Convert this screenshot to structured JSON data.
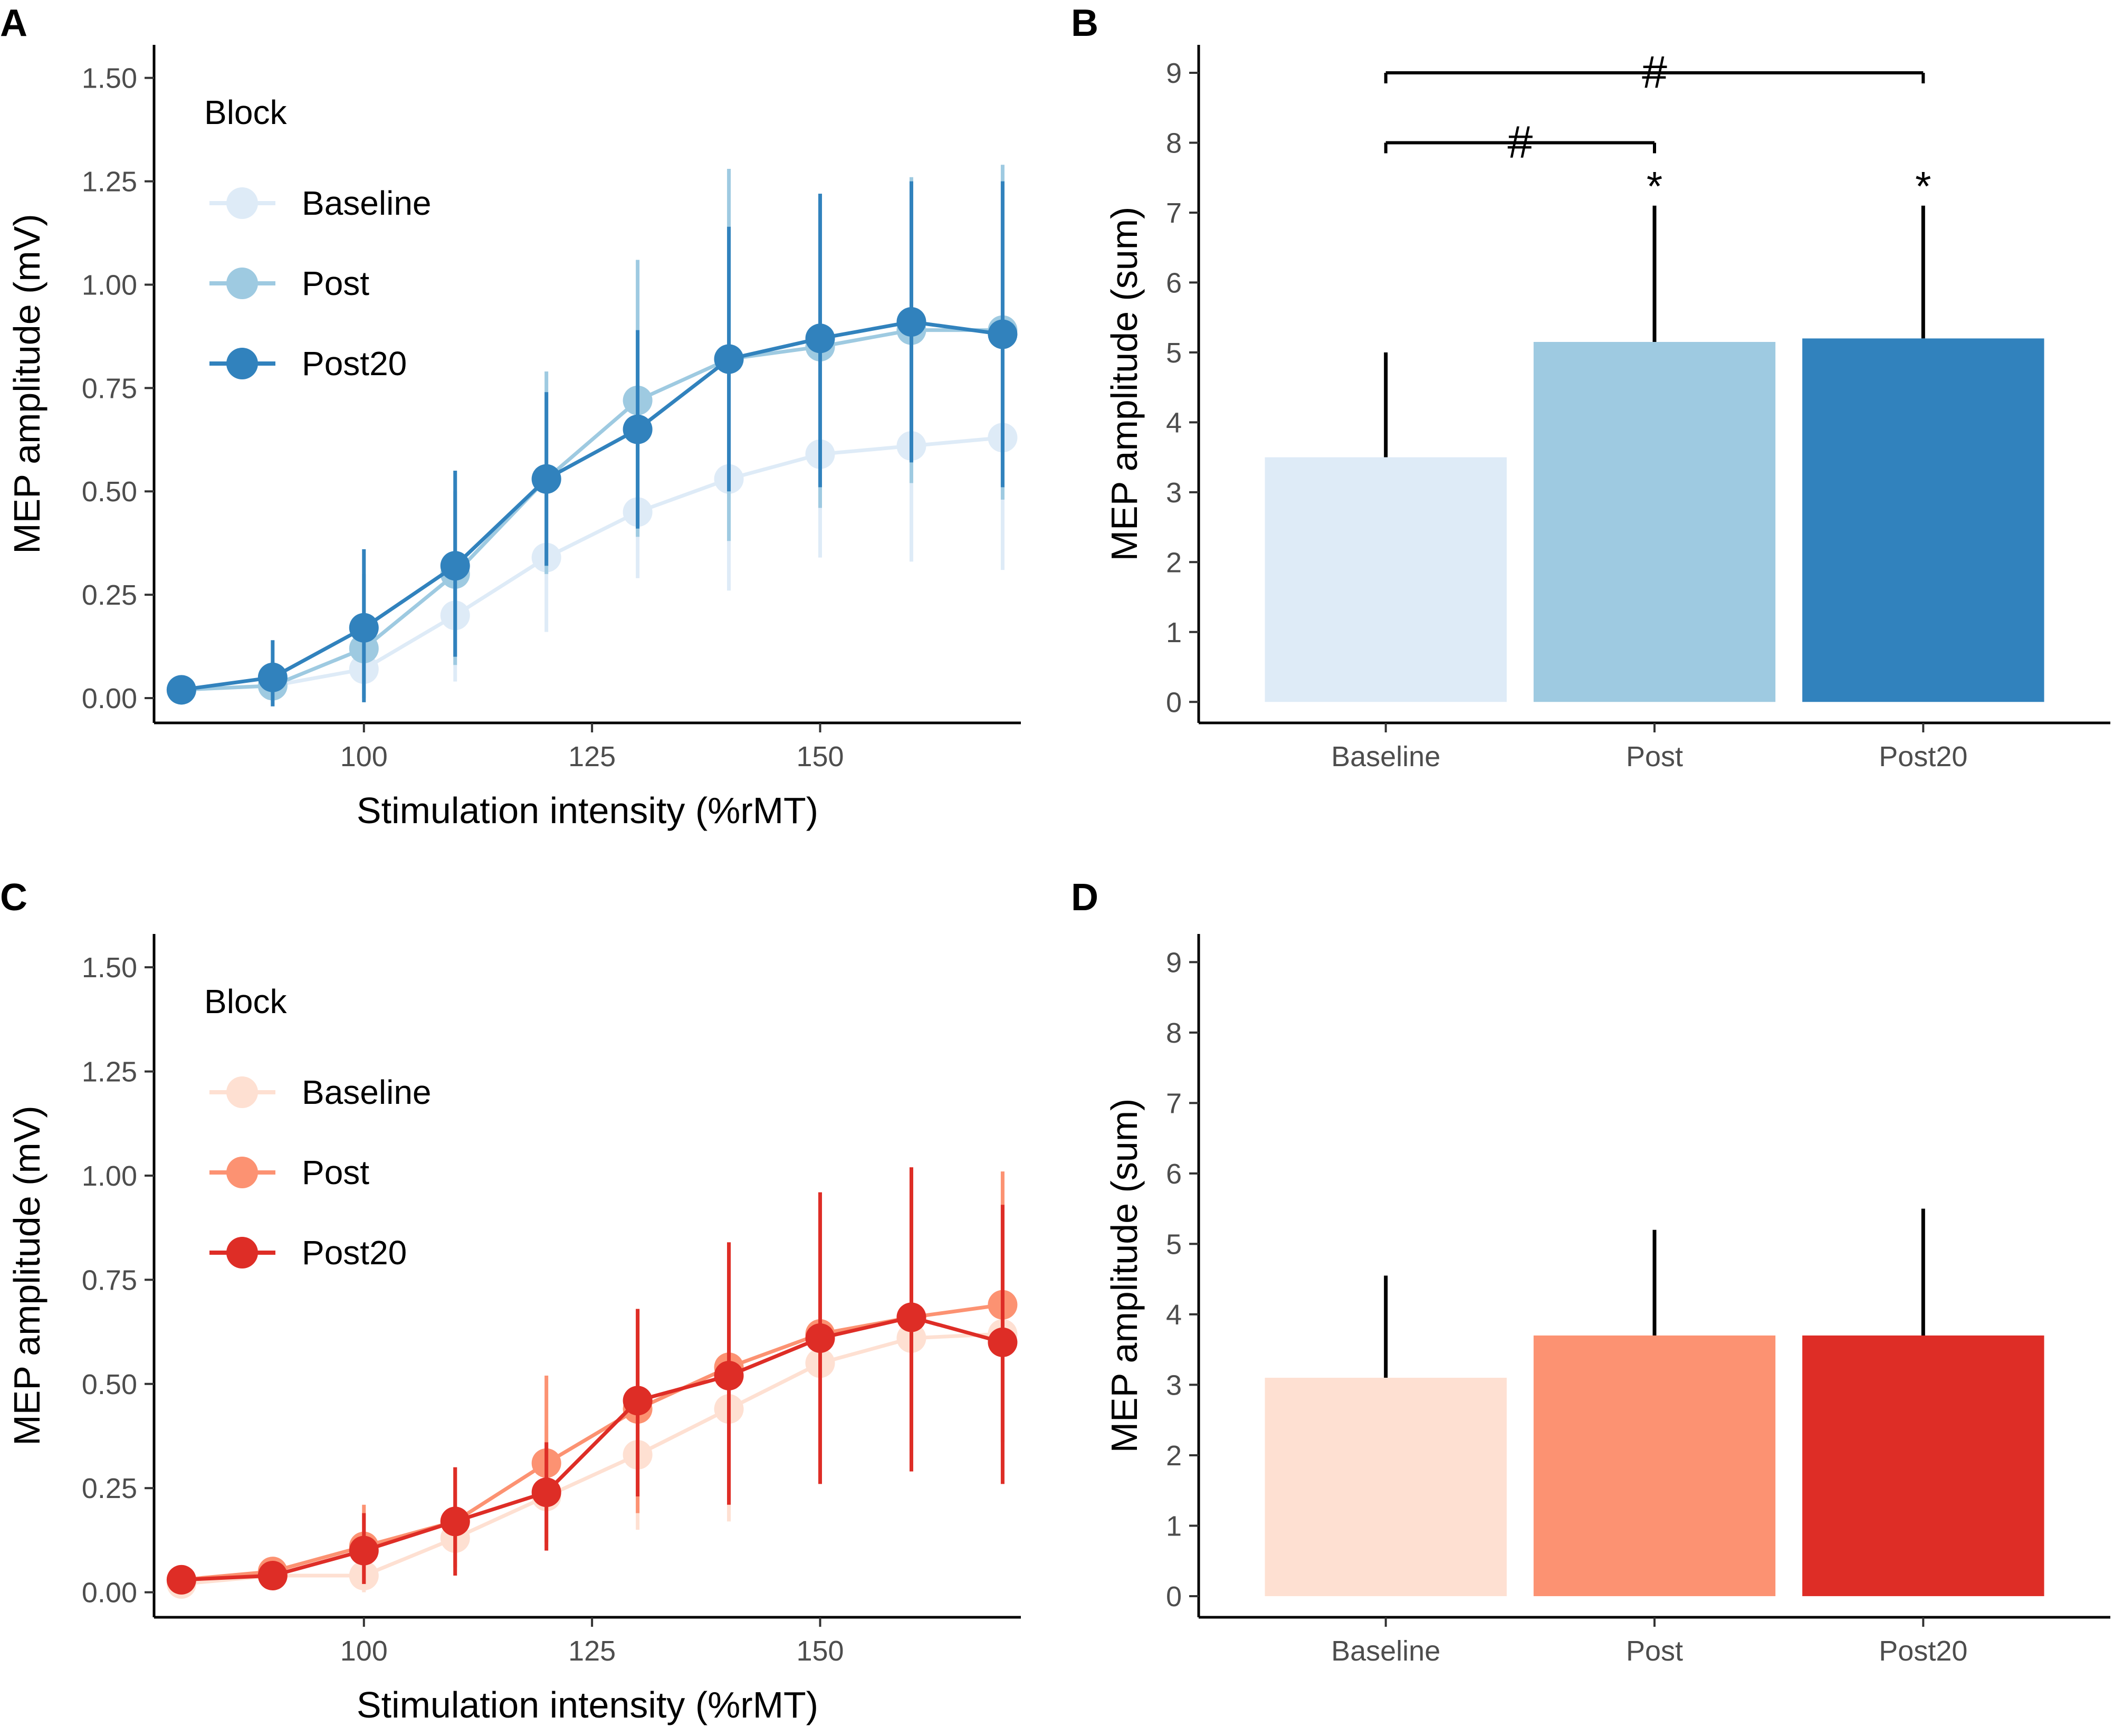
{
  "chart_data": [
    {
      "panel": "A",
      "type": "line",
      "xlabel": "Stimulation intensity (%rMT)",
      "ylabel": "MEP amplitude (mV)",
      "xlim": [
        77,
        172
      ],
      "ylim": [
        -0.06,
        1.58
      ],
      "xticks": [
        100,
        125,
        150
      ],
      "yticks": [
        0.0,
        0.25,
        0.5,
        0.75,
        1.0,
        1.25,
        1.5
      ],
      "ytick_labels": [
        "0.00",
        "0.25",
        "0.50",
        "0.75",
        "1.00",
        "1.25",
        "1.50"
      ],
      "legend": {
        "title": "Block",
        "position": "top-left"
      },
      "x": [
        80,
        90,
        100,
        110,
        120,
        130,
        140,
        150,
        160,
        170
      ],
      "series": [
        {
          "name": "Baseline",
          "color": "#deebf7",
          "values": [
            0.02,
            0.03,
            0.07,
            0.2,
            0.34,
            0.45,
            0.53,
            0.59,
            0.61,
            0.63
          ],
          "err_low": [
            0.0,
            -0.01,
            0.0,
            0.04,
            0.16,
            0.29,
            0.26,
            0.34,
            0.33,
            0.31
          ],
          "err_high": [
            0.05,
            0.08,
            0.17,
            0.35,
            0.52,
            0.63,
            0.8,
            0.84,
            0.89,
            0.94
          ]
        },
        {
          "name": "Post",
          "color": "#9ecae1",
          "values": [
            0.02,
            0.03,
            0.12,
            0.3,
            0.53,
            0.72,
            0.82,
            0.85,
            0.89,
            0.89
          ],
          "err_low": [
            0.0,
            -0.02,
            0.0,
            0.08,
            0.3,
            0.39,
            0.38,
            0.46,
            0.52,
            0.48
          ],
          "err_high": [
            0.05,
            0.09,
            0.3,
            0.5,
            0.79,
            1.06,
            1.28,
            1.22,
            1.26,
            1.29
          ]
        },
        {
          "name": "Post20",
          "color": "#3182bd",
          "values": [
            0.02,
            0.05,
            0.17,
            0.32,
            0.53,
            0.65,
            0.82,
            0.87,
            0.91,
            0.88
          ],
          "err_low": [
            0.0,
            -0.02,
            -0.01,
            0.1,
            0.32,
            0.41,
            0.5,
            0.51,
            0.57,
            0.51
          ],
          "err_high": [
            0.05,
            0.14,
            0.36,
            0.55,
            0.74,
            0.89,
            1.14,
            1.22,
            1.25,
            1.25
          ]
        }
      ]
    },
    {
      "panel": "B",
      "type": "bar",
      "xlabel": "",
      "ylabel": "MEP amplitude (sum)",
      "ylim": [
        -0.3,
        9.4
      ],
      "yticks": [
        0,
        1,
        2,
        3,
        4,
        5,
        6,
        7,
        8,
        9
      ],
      "categories": [
        "Baseline",
        "Post",
        "Post20"
      ],
      "values": [
        3.5,
        5.15,
        5.2
      ],
      "err_high": [
        5.0,
        7.1,
        7.1
      ],
      "colors": [
        "#deebf7",
        "#9ecae1",
        "#3182bd"
      ],
      "star_marks": [
        "",
        "*",
        "*"
      ],
      "brackets": [
        {
          "from": 0,
          "to": 1,
          "y": 8.0,
          "label": "#"
        },
        {
          "from": 0,
          "to": 2,
          "y": 9.0,
          "label": "#"
        }
      ]
    },
    {
      "panel": "C",
      "type": "line",
      "xlabel": "Stimulation intensity (%rMT)",
      "ylabel": "MEP amplitude (mV)",
      "xlim": [
        77,
        172
      ],
      "ylim": [
        -0.06,
        1.58
      ],
      "xticks": [
        100,
        125,
        150
      ],
      "yticks": [
        0.0,
        0.25,
        0.5,
        0.75,
        1.0,
        1.25,
        1.5
      ],
      "ytick_labels": [
        "0.00",
        "0.25",
        "0.50",
        "0.75",
        "1.00",
        "1.25",
        "1.50"
      ],
      "legend": {
        "title": "Block",
        "position": "top-left"
      },
      "x": [
        80,
        90,
        100,
        110,
        120,
        130,
        140,
        150,
        160,
        170
      ],
      "series": [
        {
          "name": "Baseline",
          "color": "#fee0d2",
          "values": [
            0.02,
            0.04,
            0.04,
            0.13,
            0.23,
            0.33,
            0.44,
            0.55,
            0.61,
            0.62
          ],
          "err_low": [
            0.01,
            0.02,
            0.0,
            0.05,
            0.11,
            0.15,
            0.17,
            0.3,
            0.32,
            0.3
          ],
          "err_high": [
            0.04,
            0.06,
            0.12,
            0.24,
            0.4,
            0.56,
            0.75,
            0.87,
            0.95,
            0.94
          ]
        },
        {
          "name": "Post",
          "color": "#fc9272",
          "values": [
            0.03,
            0.05,
            0.11,
            0.17,
            0.31,
            0.44,
            0.54,
            0.62,
            0.66,
            0.69
          ],
          "err_low": [
            0.01,
            0.02,
            0.02,
            0.06,
            0.12,
            0.19,
            0.22,
            0.32,
            0.34,
            0.36
          ],
          "err_high": [
            0.06,
            0.08,
            0.21,
            0.3,
            0.52,
            0.68,
            0.84,
            0.96,
            1.02,
            1.01
          ]
        },
        {
          "name": "Post20",
          "color": "#de2d26",
          "values": [
            0.03,
            0.04,
            0.1,
            0.17,
            0.24,
            0.46,
            0.52,
            0.61,
            0.66,
            0.6
          ],
          "err_low": [
            0.01,
            0.02,
            0.02,
            0.04,
            0.1,
            0.23,
            0.21,
            0.26,
            0.29,
            0.26
          ],
          "err_high": [
            0.05,
            0.06,
            0.19,
            0.3,
            0.36,
            0.68,
            0.84,
            0.96,
            1.02,
            0.93
          ]
        }
      ]
    },
    {
      "panel": "D",
      "type": "bar",
      "xlabel": "",
      "ylabel": "MEP amplitude (sum)",
      "ylim": [
        -0.3,
        9.4
      ],
      "yticks": [
        0,
        1,
        2,
        3,
        4,
        5,
        6,
        7,
        8,
        9
      ],
      "categories": [
        "Baseline",
        "Post",
        "Post20"
      ],
      "values": [
        3.1,
        3.7,
        3.7
      ],
      "err_high": [
        4.55,
        5.2,
        5.5
      ],
      "colors": [
        "#fee0d2",
        "#fc9272",
        "#de2d26"
      ],
      "star_marks": [
        "",
        "",
        ""
      ],
      "brackets": []
    }
  ]
}
